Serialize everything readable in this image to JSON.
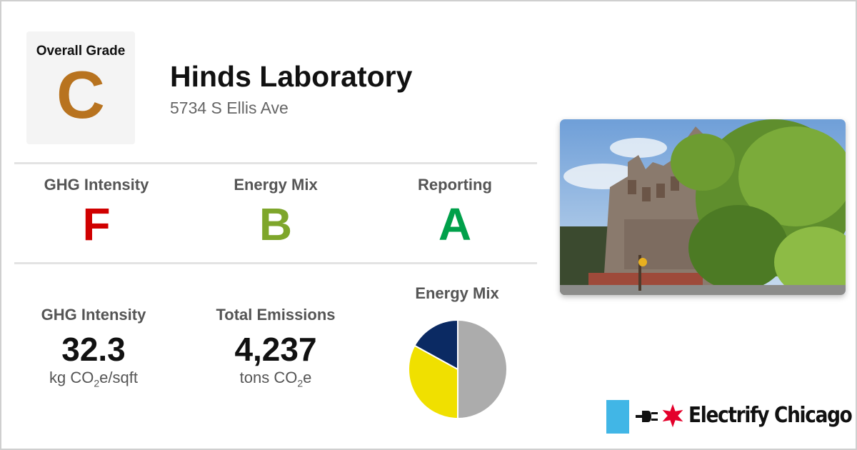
{
  "overall_grade": {
    "label": "Overall Grade",
    "letter": "C",
    "color": "#b8731f"
  },
  "building": {
    "name": "Hinds Laboratory",
    "address": "5734 S Ellis Ave"
  },
  "grades": [
    {
      "label": "GHG Intensity",
      "letter": "F",
      "color": "#d00000"
    },
    {
      "label": "Energy Mix",
      "letter": "B",
      "color": "#7ea62b"
    },
    {
      "label": "Reporting",
      "letter": "A",
      "color": "#00a04a"
    }
  ],
  "stats": [
    {
      "label": "GHG Intensity",
      "value": "32.3",
      "unit_prefix": "kg CO",
      "unit_sub": "2",
      "unit_suffix": "e/sqft"
    },
    {
      "label": "Total Emissions",
      "value": "4,237",
      "unit_prefix": "tons CO",
      "unit_sub": "2",
      "unit_suffix": "e"
    }
  ],
  "chart_data": {
    "type": "pie",
    "title": "Energy Mix",
    "slices": [
      {
        "value": 50,
        "color": "#acacac"
      },
      {
        "value": 33,
        "color": "#f0e000"
      },
      {
        "value": 17,
        "color": "#0b2a63"
      }
    ]
  },
  "photo": {
    "icon": "building-photo"
  },
  "brand": {
    "name": "Electrify Chicago",
    "square_color": "#41b6e6",
    "star_color": "#e4002b"
  }
}
